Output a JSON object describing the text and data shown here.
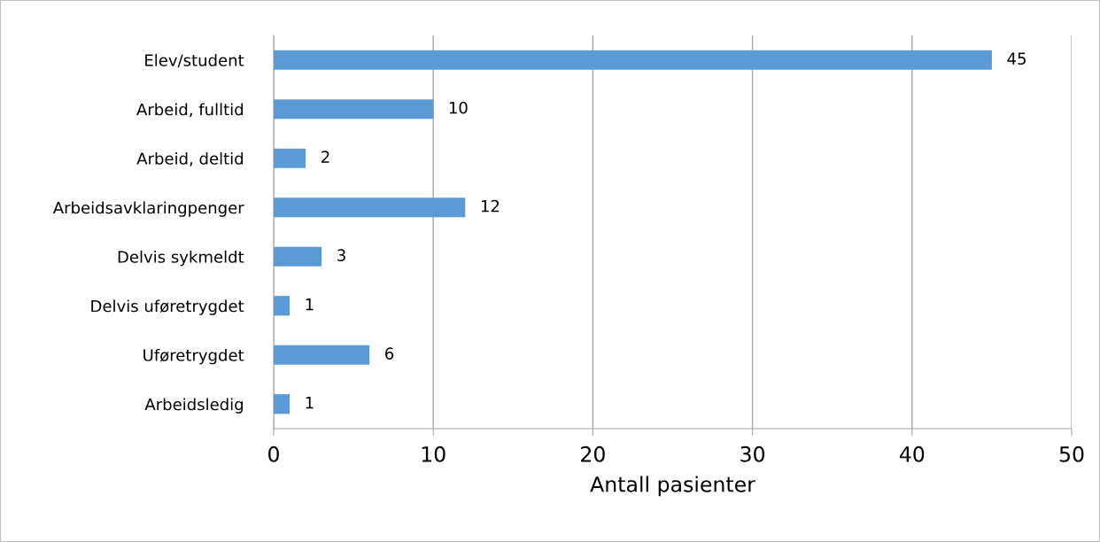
{
  "chart_data": {
    "type": "bar",
    "orientation": "horizontal",
    "xlabel": "Antall pasienter",
    "categories": [
      "Elev/student",
      "Arbeid, fulltid",
      "Arbeid, deltid",
      "Arbeidsavklaringpenger",
      "Delvis sykmeldt",
      "Delvis uføretrygdet",
      "Uføretrygdet",
      "Arbeidsledig"
    ],
    "values": [
      45,
      10,
      2,
      12,
      3,
      1,
      6,
      1
    ],
    "color": "#5b9bd5",
    "xlim": [
      0,
      50
    ],
    "xticks": [
      0,
      10,
      20,
      30,
      40,
      50
    ],
    "grid": "x",
    "data_labels": true
  }
}
